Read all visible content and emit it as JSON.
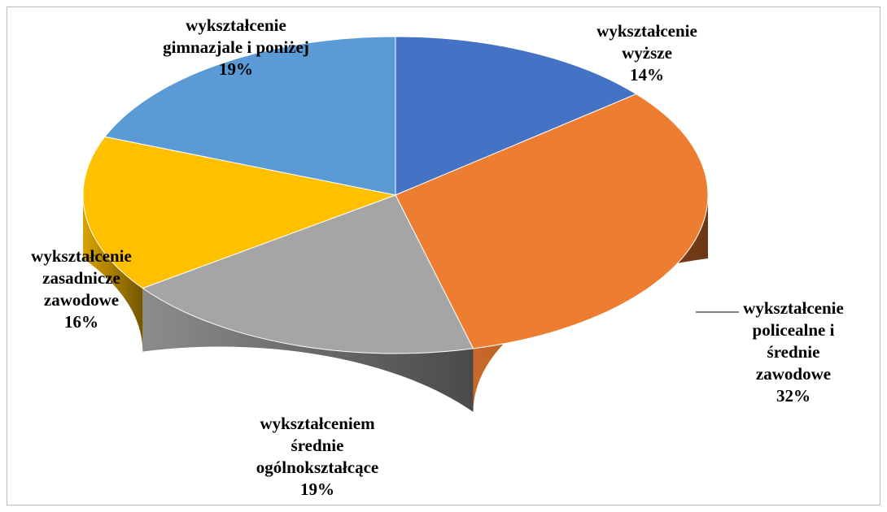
{
  "chart_data": {
    "type": "pie3d",
    "categories": [
      "wykształcenie wyższe",
      "wykształcenie policealne i średnie zawodowe",
      "wykształceniem średnie ogólnokształcące",
      "wykształcenie zasadnicze zawodowe",
      "wykształcenie gimnazjale i poniżej"
    ],
    "values": [
      14,
      32,
      19,
      16,
      19
    ],
    "value_labels": [
      "14%",
      "32%",
      "19%",
      "16%",
      "19%"
    ],
    "colors": [
      "#4472c4",
      "#ed7d31",
      "#a5a5a5",
      "#ffc000",
      "#5b9bd5"
    ]
  }
}
